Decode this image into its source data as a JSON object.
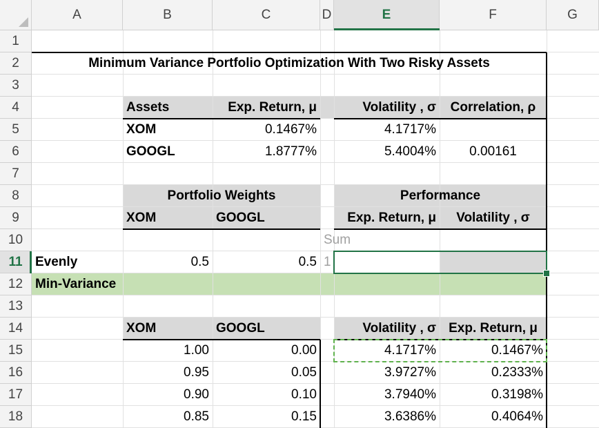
{
  "columns": [
    "A",
    "B",
    "C",
    "D",
    "E",
    "F",
    "G"
  ],
  "rows": [
    "1",
    "2",
    "3",
    "4",
    "5",
    "6",
    "7",
    "8",
    "9",
    "10",
    "11",
    "12",
    "13",
    "14",
    "15",
    "16",
    "17",
    "18"
  ],
  "active_cell": {
    "column": "E",
    "row": "11"
  },
  "colors": {
    "header_fill": "#d9d9d9",
    "min_variance_fill": "#c6e0b4",
    "selection": "#217346",
    "copy_marquee": "#5fb24d"
  },
  "sheet": {
    "title": "Minimum Variance Portfolio Optimization With Two Risky Assets",
    "assets_table": {
      "headers": [
        "Assets",
        "Exp. Return, μ",
        "Volatility , σ",
        "Correlation, ρ"
      ],
      "rows": [
        {
          "asset": "XOM",
          "exp_return": "0.1467%",
          "volatility": "4.1717%"
        },
        {
          "asset": "GOOGL",
          "exp_return": "1.8777%",
          "volatility": "5.4004%"
        }
      ],
      "correlation": "0.00161"
    },
    "portfolio": {
      "weights_header": "Portfolio Weights",
      "performance_header": "Performance",
      "sub_headers": [
        "XOM",
        "GOOGL",
        "Exp. Return, μ",
        "Volatility , σ"
      ],
      "sum_label": "Sum",
      "evenly": {
        "label": "Evenly",
        "xom": "0.5",
        "googl": "0.5",
        "sum": "1"
      },
      "min_variance_label": "Min-Variance"
    },
    "frontier": {
      "headers": [
        "XOM",
        "GOOGL",
        "Volatility , σ",
        "Exp. Return, μ"
      ],
      "rows": [
        [
          "1.00",
          "0.00",
          "4.1717%",
          "0.1467%"
        ],
        [
          "0.95",
          "0.05",
          "3.9727%",
          "0.2333%"
        ],
        [
          "0.90",
          "0.10",
          "3.7940%",
          "0.3198%"
        ],
        [
          "0.85",
          "0.15",
          "3.6386%",
          "0.4064%"
        ]
      ]
    }
  }
}
